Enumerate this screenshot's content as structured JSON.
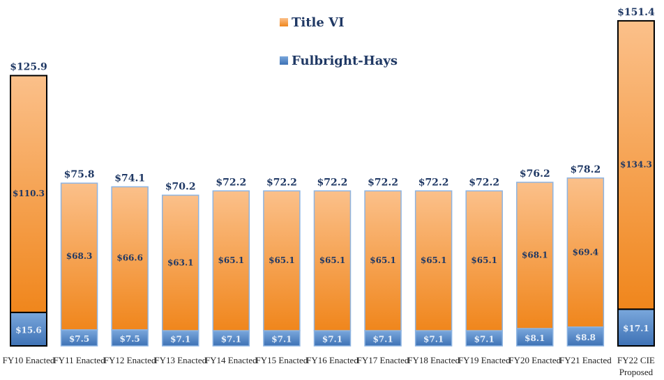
{
  "chart_data": {
    "type": "stacked_bar",
    "categories": [
      "FY10 Enacted",
      "FY11 Enacted",
      "FY12 Enacted",
      "FY13 Enacted",
      "FY14 Enacted",
      "FY15 Enacted",
      "FY16 Enacted",
      "FY17 Enacted",
      "FY18 Enacted",
      "FY19 Enacted",
      "FY20 Enacted",
      "FY21 Enacted",
      "FY22 CIE Proposed"
    ],
    "series": [
      {
        "name": "Fulbright-Hays",
        "color": "#4f81bd",
        "values": [
          15.6,
          7.5,
          7.5,
          7.1,
          7.1,
          7.1,
          7.1,
          7.1,
          7.1,
          7.1,
          8.1,
          8.8,
          17.1
        ],
        "value_labels": [
          "$15.6",
          "$7.5",
          "$7.5",
          "$7.1",
          "$7.1",
          "$7.1",
          "$7.1",
          "$7.1",
          "$7.1",
          "$7.1",
          "$8.1",
          "$8.8",
          "$17.1"
        ]
      },
      {
        "name": "Title VI",
        "color": "#f79646",
        "values": [
          110.3,
          68.3,
          66.6,
          63.1,
          65.1,
          65.1,
          65.1,
          65.1,
          65.1,
          65.1,
          68.1,
          69.4,
          134.3
        ],
        "value_labels": [
          "$110.3",
          "$68.3",
          "$66.6",
          "$63.1",
          "$65.1",
          "$65.1",
          "$65.1",
          "$65.1",
          "$65.1",
          "$65.1",
          "$68.1",
          "$69.4",
          "$134.3"
        ]
      }
    ],
    "totals": [
      125.9,
      75.8,
      74.1,
      70.2,
      72.2,
      72.2,
      72.2,
      72.2,
      72.2,
      72.2,
      76.2,
      78.2,
      151.4
    ],
    "total_labels": [
      "$125.9",
      "$75.8",
      "$74.1",
      "$70.2",
      "$72.2",
      "$72.2",
      "$72.2",
      "$72.2",
      "$72.2",
      "$72.2",
      "$76.2",
      "$78.2",
      "$151.4"
    ],
    "outline_colors": [
      "#000000",
      "#8db4e2",
      "#8db4e2",
      "#8db4e2",
      "#8db4e2",
      "#8db4e2",
      "#8db4e2",
      "#8db4e2",
      "#8db4e2",
      "#8db4e2",
      "#8db4e2",
      "#8db4e2",
      "#000000"
    ],
    "legend": "top"
  }
}
